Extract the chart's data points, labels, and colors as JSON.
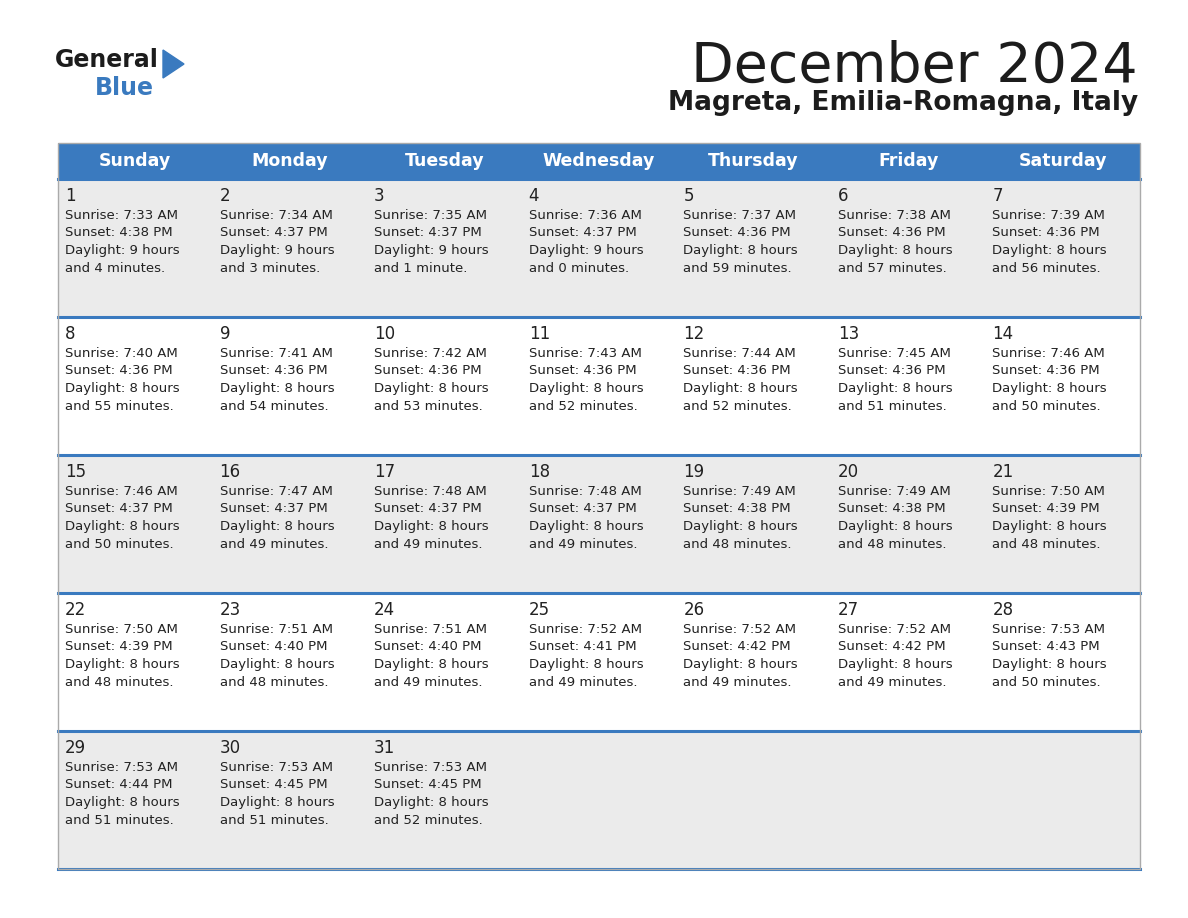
{
  "title": "December 2024",
  "subtitle": "Magreta, Emilia-Romagna, Italy",
  "days_of_week": [
    "Sunday",
    "Monday",
    "Tuesday",
    "Wednesday",
    "Thursday",
    "Friday",
    "Saturday"
  ],
  "header_bg": "#3a7abf",
  "header_text": "#ffffff",
  "row_bg_odd": "#ebebeb",
  "row_bg_even": "#ffffff",
  "separator_color": "#3a7abf",
  "text_color": "#222222",
  "calendar_data": [
    [
      {
        "day": "1",
        "sunrise": "7:33 AM",
        "sunset": "4:38 PM",
        "daylight_h": "9 hours",
        "daylight_m": "and 4 minutes."
      },
      {
        "day": "2",
        "sunrise": "7:34 AM",
        "sunset": "4:37 PM",
        "daylight_h": "9 hours",
        "daylight_m": "and 3 minutes."
      },
      {
        "day": "3",
        "sunrise": "7:35 AM",
        "sunset": "4:37 PM",
        "daylight_h": "9 hours",
        "daylight_m": "and 1 minute."
      },
      {
        "day": "4",
        "sunrise": "7:36 AM",
        "sunset": "4:37 PM",
        "daylight_h": "9 hours",
        "daylight_m": "and 0 minutes."
      },
      {
        "day": "5",
        "sunrise": "7:37 AM",
        "sunset": "4:36 PM",
        "daylight_h": "8 hours",
        "daylight_m": "and 59 minutes."
      },
      {
        "day": "6",
        "sunrise": "7:38 AM",
        "sunset": "4:36 PM",
        "daylight_h": "8 hours",
        "daylight_m": "and 57 minutes."
      },
      {
        "day": "7",
        "sunrise": "7:39 AM",
        "sunset": "4:36 PM",
        "daylight_h": "8 hours",
        "daylight_m": "and 56 minutes."
      }
    ],
    [
      {
        "day": "8",
        "sunrise": "7:40 AM",
        "sunset": "4:36 PM",
        "daylight_h": "8 hours",
        "daylight_m": "and 55 minutes."
      },
      {
        "day": "9",
        "sunrise": "7:41 AM",
        "sunset": "4:36 PM",
        "daylight_h": "8 hours",
        "daylight_m": "and 54 minutes."
      },
      {
        "day": "10",
        "sunrise": "7:42 AM",
        "sunset": "4:36 PM",
        "daylight_h": "8 hours",
        "daylight_m": "and 53 minutes."
      },
      {
        "day": "11",
        "sunrise": "7:43 AM",
        "sunset": "4:36 PM",
        "daylight_h": "8 hours",
        "daylight_m": "and 52 minutes."
      },
      {
        "day": "12",
        "sunrise": "7:44 AM",
        "sunset": "4:36 PM",
        "daylight_h": "8 hours",
        "daylight_m": "and 52 minutes."
      },
      {
        "day": "13",
        "sunrise": "7:45 AM",
        "sunset": "4:36 PM",
        "daylight_h": "8 hours",
        "daylight_m": "and 51 minutes."
      },
      {
        "day": "14",
        "sunrise": "7:46 AM",
        "sunset": "4:36 PM",
        "daylight_h": "8 hours",
        "daylight_m": "and 50 minutes."
      }
    ],
    [
      {
        "day": "15",
        "sunrise": "7:46 AM",
        "sunset": "4:37 PM",
        "daylight_h": "8 hours",
        "daylight_m": "and 50 minutes."
      },
      {
        "day": "16",
        "sunrise": "7:47 AM",
        "sunset": "4:37 PM",
        "daylight_h": "8 hours",
        "daylight_m": "and 49 minutes."
      },
      {
        "day": "17",
        "sunrise": "7:48 AM",
        "sunset": "4:37 PM",
        "daylight_h": "8 hours",
        "daylight_m": "and 49 minutes."
      },
      {
        "day": "18",
        "sunrise": "7:48 AM",
        "sunset": "4:37 PM",
        "daylight_h": "8 hours",
        "daylight_m": "and 49 minutes."
      },
      {
        "day": "19",
        "sunrise": "7:49 AM",
        "sunset": "4:38 PM",
        "daylight_h": "8 hours",
        "daylight_m": "and 48 minutes."
      },
      {
        "day": "20",
        "sunrise": "7:49 AM",
        "sunset": "4:38 PM",
        "daylight_h": "8 hours",
        "daylight_m": "and 48 minutes."
      },
      {
        "day": "21",
        "sunrise": "7:50 AM",
        "sunset": "4:39 PM",
        "daylight_h": "8 hours",
        "daylight_m": "and 48 minutes."
      }
    ],
    [
      {
        "day": "22",
        "sunrise": "7:50 AM",
        "sunset": "4:39 PM",
        "daylight_h": "8 hours",
        "daylight_m": "and 48 minutes."
      },
      {
        "day": "23",
        "sunrise": "7:51 AM",
        "sunset": "4:40 PM",
        "daylight_h": "8 hours",
        "daylight_m": "and 48 minutes."
      },
      {
        "day": "24",
        "sunrise": "7:51 AM",
        "sunset": "4:40 PM",
        "daylight_h": "8 hours",
        "daylight_m": "and 49 minutes."
      },
      {
        "day": "25",
        "sunrise": "7:52 AM",
        "sunset": "4:41 PM",
        "daylight_h": "8 hours",
        "daylight_m": "and 49 minutes."
      },
      {
        "day": "26",
        "sunrise": "7:52 AM",
        "sunset": "4:42 PM",
        "daylight_h": "8 hours",
        "daylight_m": "and 49 minutes."
      },
      {
        "day": "27",
        "sunrise": "7:52 AM",
        "sunset": "4:42 PM",
        "daylight_h": "8 hours",
        "daylight_m": "and 49 minutes."
      },
      {
        "day": "28",
        "sunrise": "7:53 AM",
        "sunset": "4:43 PM",
        "daylight_h": "8 hours",
        "daylight_m": "and 50 minutes."
      }
    ],
    [
      {
        "day": "29",
        "sunrise": "7:53 AM",
        "sunset": "4:44 PM",
        "daylight_h": "8 hours",
        "daylight_m": "and 51 minutes."
      },
      {
        "day": "30",
        "sunrise": "7:53 AM",
        "sunset": "4:45 PM",
        "daylight_h": "8 hours",
        "daylight_m": "and 51 minutes."
      },
      {
        "day": "31",
        "sunrise": "7:53 AM",
        "sunset": "4:45 PM",
        "daylight_h": "8 hours",
        "daylight_m": "and 52 minutes."
      },
      null,
      null,
      null,
      null
    ]
  ]
}
